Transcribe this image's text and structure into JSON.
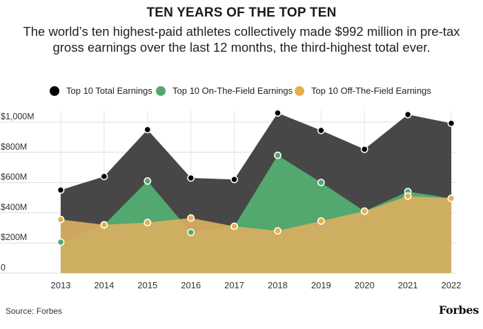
{
  "header": {
    "title": "TEN YEARS OF THE TOP TEN",
    "subtitle_line1": "The world’s ten highest-paid athletes collectively made $992 million in pre-tax",
    "subtitle_line2": "gross earnings over the last 12 months, the third-highest total ever."
  },
  "footer": {
    "source": "Source: Forbes",
    "brand": "Forbes"
  },
  "colors": {
    "total": "#000000",
    "total_fill": "#474747",
    "on_field": "#52a86f",
    "off_field": "#e6b04a",
    "off_fill": "#d9b061"
  },
  "chart_data": {
    "type": "area",
    "title": "TEN YEARS OF THE TOP TEN",
    "categories": [
      "2013",
      "2014",
      "2015",
      "2016",
      "2017",
      "2018",
      "2019",
      "2020",
      "2021",
      "2022"
    ],
    "series": [
      {
        "name": "Top 10 Total Earnings",
        "values": [
          550,
          640,
          950,
          630,
          620,
          1060,
          945,
          820,
          1050,
          992
        ]
      },
      {
        "name": "Top 10 On-The-Field Earnings",
        "values": [
          205,
          320,
          610,
          270,
          310,
          780,
          600,
          410,
          540,
          495
        ]
      },
      {
        "name": "Top 10 Off-The-Field Earnings",
        "values": [
          355,
          320,
          335,
          365,
          310,
          280,
          345,
          410,
          510,
          495
        ]
      }
    ],
    "y_ticks": [
      "$1,000M",
      "$800M",
      "$600M",
      "$400M",
      "$200M",
      "0"
    ],
    "y_tick_values": [
      1000,
      800,
      600,
      400,
      200,
      0
    ],
    "ylim": [
      0,
      1100
    ],
    "xlabel": "",
    "ylabel": "",
    "legend_position": "top",
    "grid": true
  }
}
